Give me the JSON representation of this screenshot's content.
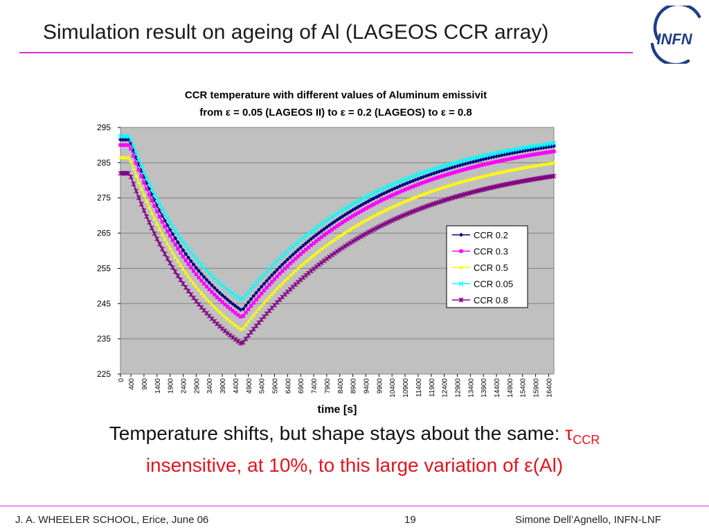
{
  "slide": {
    "title": "Simulation result on ageing of Al (LAGEOS CCR array)",
    "logo_text": "INFN",
    "caption_line1_prefix": "Temperature shifts, but shape stays about the same: ",
    "caption_tau": "τ",
    "caption_tau_sub": "CCR",
    "caption_line2_prefix": "insensitive, at 10%, to this large variation of ",
    "caption_eps": "ε",
    "caption_line2_suffix": "(Al)",
    "footer_left": "J. A. WHEELER SCHOOL, Erice, June 06",
    "footer_center": "19",
    "footer_right": "Simone Dell’Agnello, INFN-LNF"
  },
  "colors": {
    "accent_rule": "#d52ad5",
    "caption_red": "#e0141e",
    "plot_bg": "#c0c0c0"
  },
  "chart_data": {
    "type": "line",
    "title_line1": "CCR temperature with different values of Aluminum emissivit",
    "title_line2": "from ε = 0.05 (LAGEOS II) to ε = 0.2 (LAGEOS) to ε = 0.8",
    "xlabel": "time [s]",
    "ylabel": "",
    "xlim": [
      0,
      16600
    ],
    "ylim": [
      225,
      295
    ],
    "yticks": [
      225,
      235,
      245,
      255,
      265,
      275,
      285,
      295
    ],
    "xticks": [
      "0",
      "400",
      "900",
      "1400",
      "1900",
      "2400",
      "2900",
      "3400",
      "3900",
      "4400",
      "4900",
      "5400",
      "5900",
      "6400",
      "6900",
      "7400",
      "7900",
      "8400",
      "8900",
      "9400",
      "9900",
      "10400",
      "10900",
      "11400",
      "11900",
      "12400",
      "12900",
      "13400",
      "13900",
      "14400",
      "14900",
      "15400",
      "15900",
      "16400"
    ],
    "grid": "horizontal",
    "legend_position": "right",
    "shape": {
      "eclipse_start": 350,
      "min_time": 4650,
      "tau_recovery": 5400
    },
    "series": [
      {
        "name": "CCR 0.2",
        "color": "#000080",
        "marker": "diamond",
        "start": 291.5,
        "min": 243.0,
        "end": 289.7
      },
      {
        "name": "CCR 0.3",
        "color": "#ff00ff",
        "marker": "square",
        "start": 290.0,
        "min": 241.0,
        "end": 288.2
      },
      {
        "name": "CCR 0.5",
        "color": "#ffff00",
        "marker": "triangle",
        "start": 286.5,
        "min": 237.5,
        "end": 285.0
      },
      {
        "name": "CCR 0.05",
        "color": "#00ffff",
        "marker": "x",
        "start": 292.5,
        "min": 246.0,
        "end": 290.5
      },
      {
        "name": "CCR 0.8",
        "color": "#800080",
        "marker": "star",
        "start": 282.0,
        "min": 233.5,
        "end": 281.2
      }
    ]
  }
}
